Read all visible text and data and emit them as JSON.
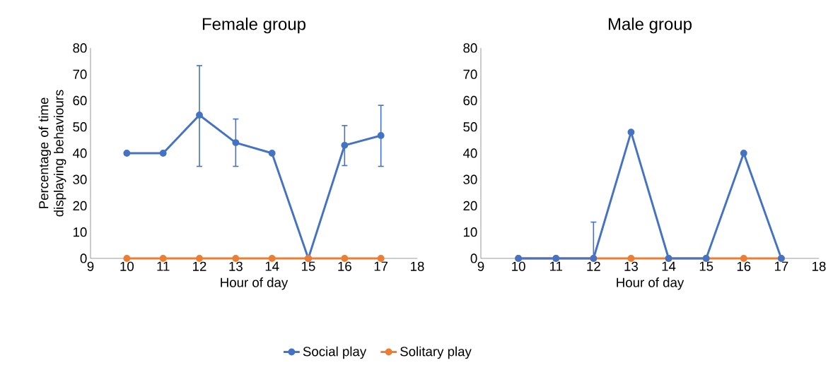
{
  "chart_data": [
    {
      "type": "line",
      "title": "Female group",
      "xlabel": "Hour of day",
      "ylabel": "Percentage of time displaying behaviours",
      "x": [
        10,
        11,
        12,
        13,
        14,
        15,
        16,
        17
      ],
      "xlim": [
        9,
        18
      ],
      "xticks": [
        9,
        10,
        11,
        12,
        13,
        14,
        15,
        16,
        17,
        18
      ],
      "ylim": [
        0,
        80
      ],
      "yticks": [
        0,
        10,
        20,
        30,
        40,
        50,
        60,
        70,
        80
      ],
      "marker": "circle",
      "line_style": "solid",
      "legend": "bottom",
      "series": [
        {
          "name": "Social play",
          "color": "#4472c4",
          "values": [
            40,
            40,
            54.5,
            44,
            40,
            0,
            43,
            46.7
          ],
          "errors": [
            null,
            null,
            [
              35,
              73.3
            ],
            [
              35,
              53
            ],
            null,
            null,
            [
              35.3,
              50.5
            ],
            [
              35,
              58.2
            ]
          ]
        },
        {
          "name": "Solitary play",
          "color": "#ed7d31",
          "values": [
            0,
            0,
            0,
            0,
            0,
            0,
            0,
            0
          ]
        }
      ]
    },
    {
      "type": "line",
      "title": "Male group",
      "xlabel": "Hour of day",
      "x": [
        10,
        11,
        12,
        13,
        14,
        15,
        16,
        17
      ],
      "xlim": [
        9,
        18
      ],
      "xticks": [
        9,
        10,
        11,
        12,
        13,
        14,
        15,
        16,
        17,
        18
      ],
      "ylim": [
        0,
        80
      ],
      "yticks": [
        0,
        10,
        20,
        30,
        40,
        50,
        60,
        70,
        80
      ],
      "marker": "circle",
      "line_style": "solid",
      "series": [
        {
          "color": "#ed7d31",
          "values": [
            0,
            0,
            0,
            0,
            0,
            0,
            0,
            0
          ]
        },
        {
          "color": "#4472c4",
          "values": [
            0,
            0,
            0,
            48,
            0,
            0,
            40,
            0
          ],
          "errors": [
            null,
            null,
            [
              0,
              13.8
            ],
            null,
            null,
            null,
            null,
            null
          ]
        }
      ]
    }
  ]
}
